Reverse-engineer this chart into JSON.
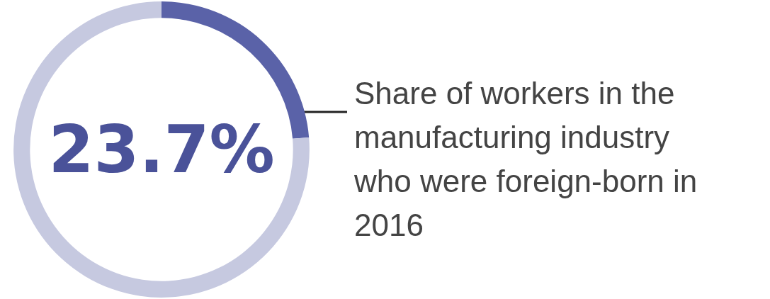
{
  "chart_data": {
    "type": "donut",
    "categories": [
      null,
      null
    ],
    "values": [
      23.7,
      76.3
    ],
    "colors": [
      "#5a62a8",
      "#c6c9e0"
    ],
    "value_labels": [
      "23.7%",
      null
    ],
    "annotations": [
      "Share of workers in the manufacturing industry who were foreign-born in 2016"
    ]
  }
}
